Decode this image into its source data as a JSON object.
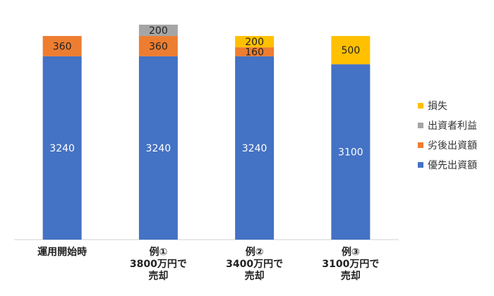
{
  "chart_data": {
    "type": "stacked_bar",
    "categories": [
      [
        "運用開始時"
      ],
      [
        "例①",
        "3800万円で",
        "売却"
      ],
      [
        "例②",
        "3400万円で",
        "売却"
      ],
      [
        "例③",
        "3100万円で",
        "売却"
      ]
    ],
    "series": [
      {
        "name": "優先出資額",
        "color": "#4472c4",
        "values": [
          3240,
          3240,
          3240,
          3100
        ]
      },
      {
        "name": "劣後出資額",
        "color": "#ed7d31",
        "values": [
          360,
          360,
          160,
          null
        ]
      },
      {
        "name": "出資者利益",
        "color": "#a5a5a5",
        "values": [
          null,
          200,
          null,
          null
        ]
      },
      {
        "name": "損失",
        "color": "#ffc000",
        "values": [
          null,
          null,
          200,
          500
        ]
      }
    ]
  }
}
